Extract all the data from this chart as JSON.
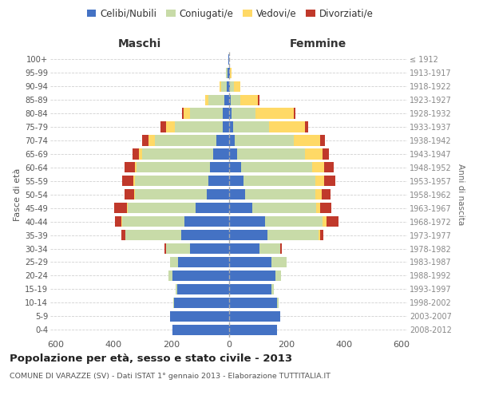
{
  "age_groups": [
    "0-4",
    "5-9",
    "10-14",
    "15-19",
    "20-24",
    "25-29",
    "30-34",
    "35-39",
    "40-44",
    "45-49",
    "50-54",
    "55-59",
    "60-64",
    "65-69",
    "70-74",
    "75-79",
    "80-84",
    "85-89",
    "90-94",
    "95-99",
    "100+"
  ],
  "birth_years": [
    "2008-2012",
    "2003-2007",
    "1998-2002",
    "1993-1997",
    "1988-1992",
    "1983-1987",
    "1978-1982",
    "1973-1977",
    "1968-1972",
    "1963-1967",
    "1958-1962",
    "1953-1957",
    "1948-1952",
    "1943-1947",
    "1938-1942",
    "1933-1937",
    "1928-1932",
    "1923-1927",
    "1918-1922",
    "1913-1917",
    "≤ 1912"
  ],
  "maschi": {
    "celibi": [
      195,
      205,
      190,
      180,
      195,
      175,
      135,
      165,
      155,
      115,
      75,
      72,
      65,
      55,
      42,
      22,
      20,
      15,
      8,
      4,
      2
    ],
    "coniugati": [
      0,
      0,
      3,
      5,
      15,
      30,
      82,
      195,
      215,
      235,
      250,
      255,
      255,
      245,
      215,
      165,
      115,
      55,
      18,
      5,
      0
    ],
    "vedovi": [
      0,
      0,
      0,
      0,
      0,
      0,
      0,
      0,
      3,
      5,
      5,
      5,
      5,
      12,
      22,
      32,
      22,
      12,
      5,
      0,
      0
    ],
    "divorziati": [
      0,
      0,
      0,
      0,
      0,
      0,
      5,
      12,
      22,
      42,
      32,
      38,
      38,
      22,
      22,
      18,
      5,
      0,
      0,
      0,
      0
    ]
  },
  "femmine": {
    "nubili": [
      168,
      178,
      168,
      148,
      162,
      148,
      108,
      135,
      125,
      82,
      58,
      52,
      42,
      30,
      20,
      15,
      10,
      8,
      5,
      3,
      2
    ],
    "coniugate": [
      0,
      0,
      5,
      8,
      20,
      52,
      72,
      178,
      202,
      222,
      242,
      248,
      248,
      235,
      205,
      125,
      82,
      32,
      12,
      2,
      0
    ],
    "vedove": [
      0,
      0,
      0,
      0,
      0,
      0,
      0,
      5,
      12,
      15,
      22,
      32,
      42,
      62,
      92,
      125,
      135,
      62,
      22,
      5,
      0
    ],
    "divorziate": [
      0,
      0,
      0,
      0,
      0,
      0,
      5,
      12,
      42,
      38,
      32,
      38,
      32,
      22,
      16,
      12,
      5,
      5,
      0,
      0,
      0
    ]
  },
  "colors": {
    "celibi": "#4472c4",
    "coniugati": "#c8dba8",
    "vedovi": "#ffd966",
    "divorziati": "#c0392b"
  },
  "xlim": 620,
  "title": "Popolazione per età, sesso e stato civile - 2013",
  "subtitle": "COMUNE DI VARAZZE (SV) - Dati ISTAT 1° gennaio 2013 - Elaborazione TUTTITALIA.IT",
  "legend_labels": [
    "Celibi/Nubili",
    "Coniugati/e",
    "Vedovi/e",
    "Divorziati/e"
  ],
  "label_maschi": "Maschi",
  "label_femmine": "Femmine",
  "ylabel_left": "Fasce di età",
  "ylabel_right": "Anni di nascita",
  "background_color": "#ffffff",
  "grid_color": "#cccccc"
}
